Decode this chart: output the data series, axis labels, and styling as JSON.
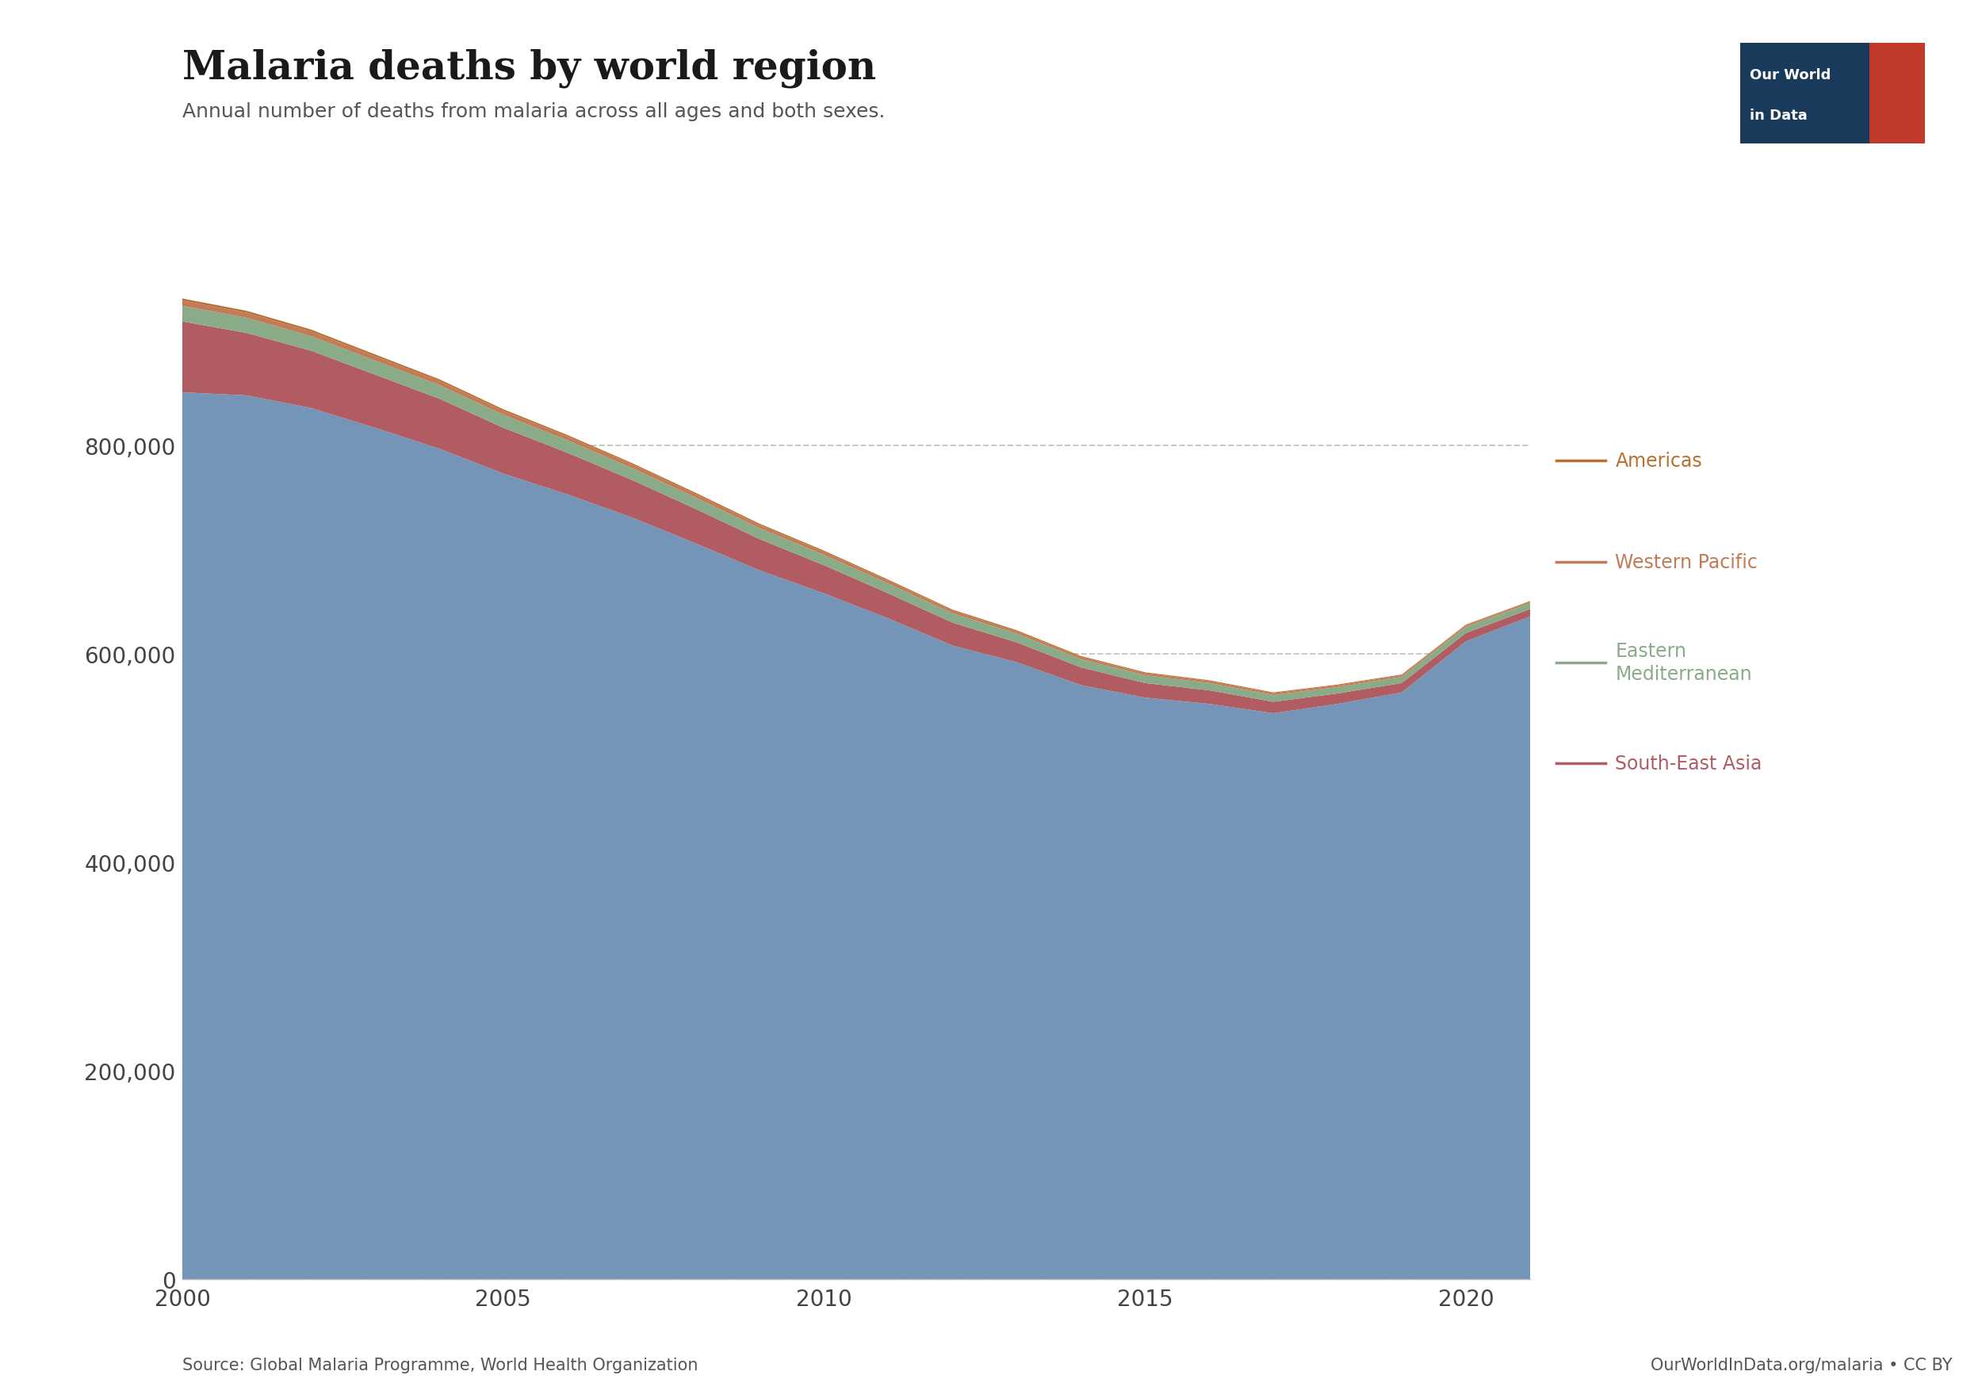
{
  "title": "Malaria deaths by world region",
  "subtitle": "Annual number of deaths from malaria across all ages and both sexes.",
  "source": "Source: Global Malaria Programme, World Health Organization",
  "url": "OurWorldInData.org/malaria • CC BY",
  "years": [
    2000,
    2001,
    2002,
    2003,
    2004,
    2005,
    2006,
    2007,
    2008,
    2009,
    2010,
    2011,
    2012,
    2013,
    2014,
    2015,
    2016,
    2017,
    2018,
    2019,
    2020,
    2021
  ],
  "africa": [
    851000,
    848000,
    836000,
    817000,
    797000,
    773000,
    753000,
    731000,
    706000,
    680000,
    658000,
    634000,
    608000,
    592000,
    570000,
    558000,
    552000,
    543000,
    552000,
    563000,
    612000,
    636000
  ],
  "south_east_asia": [
    68000,
    60000,
    55000,
    51000,
    48000,
    44000,
    40000,
    36000,
    33000,
    30000,
    27000,
    24000,
    22000,
    19000,
    17000,
    14000,
    13000,
    11000,
    10000,
    9000,
    8000,
    7000
  ],
  "eastern_mediterranean": [
    15000,
    14500,
    14000,
    13500,
    13000,
    12500,
    12000,
    11500,
    11000,
    10500,
    10000,
    9500,
    9000,
    8500,
    8000,
    7500,
    7000,
    6500,
    6200,
    6000,
    6000,
    5800
  ],
  "western_pacific": [
    5000,
    4800,
    4500,
    4200,
    4000,
    3800,
    3600,
    3400,
    3200,
    3000,
    2800,
    2600,
    2400,
    2200,
    2000,
    1900,
    1800,
    1700,
    1600,
    1500,
    1400,
    1300
  ],
  "americas": [
    2000,
    1900,
    1800,
    1700,
    1600,
    1500,
    1400,
    1350,
    1300,
    1250,
    1200,
    1100,
    1050,
    1000,
    950,
    900,
    850,
    800,
    750,
    700,
    650,
    600
  ],
  "africa_color": "#7595b8",
  "sea_color": "#b05c62",
  "emed_color": "#8aab87",
  "wpac_color": "#c27b56",
  "amer_color": "#b87030",
  "background_color": "#ffffff",
  "grid_color": "#c8c8c8",
  "logo_dark": "#1a3a5c",
  "logo_red": "#c0392b",
  "tick_color": "#444444",
  "title_color": "#1a1a1a",
  "sub_color": "#555555",
  "ylim": [
    0,
    1000000
  ],
  "yticks": [
    0,
    200000,
    400000,
    600000,
    800000
  ],
  "xticks": [
    2000,
    2005,
    2010,
    2015,
    2020
  ]
}
